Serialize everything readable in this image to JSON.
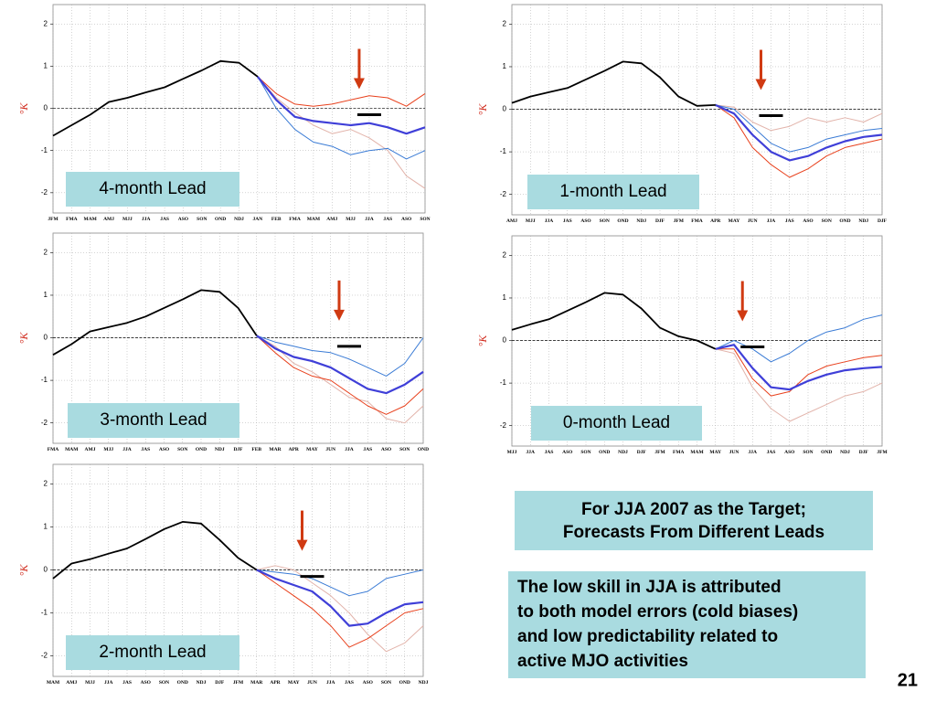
{
  "chart_data": [
    {
      "type": "line",
      "annotation": "4-month Lead",
      "ylabel": "°K",
      "categories": [
        "JFM",
        "FMA",
        "MAM",
        "AMJ",
        "MJJ",
        "JJA",
        "JAS",
        "ASO",
        "SON",
        "OND",
        "NDJ",
        "JAN",
        "FEB",
        "FMA",
        "MAM",
        "AMJ",
        "MJJ",
        "JJA",
        "JAS",
        "ASO",
        "SON"
      ],
      "ylim": [
        -2.48,
        2.46
      ],
      "yticks": [
        -2,
        -1,
        0,
        1,
        2
      ],
      "grid": true,
      "series": [
        {
          "color": "#e2b3aa",
          "width": 1,
          "values": [
            null,
            null,
            null,
            null,
            null,
            null,
            null,
            null,
            null,
            null,
            null,
            0.75,
            0.25,
            -0.1,
            -0.4,
            -0.6,
            -0.5,
            -0.7,
            -1.0,
            -1.6,
            -1.9
          ]
        },
        {
          "color": "#3a7bd5",
          "width": 1,
          "values": [
            null,
            null,
            null,
            null,
            null,
            null,
            null,
            null,
            null,
            null,
            null,
            0.75,
            0.0,
            -0.5,
            -0.8,
            -0.9,
            -1.1,
            -1.0,
            -0.95,
            -1.2,
            -1.0
          ]
        },
        {
          "color": "#e8401c",
          "width": 1,
          "values": [
            null,
            null,
            null,
            null,
            null,
            null,
            null,
            null,
            null,
            null,
            null,
            0.75,
            0.35,
            0.1,
            0.05,
            0.1,
            0.2,
            0.3,
            0.25,
            0.05,
            0.35
          ]
        },
        {
          "color": "#3f3fd8",
          "width": 2.2,
          "values": [
            null,
            null,
            null,
            null,
            null,
            null,
            null,
            null,
            null,
            null,
            null,
            0.75,
            0.2,
            -0.2,
            -0.3,
            -0.35,
            -0.4,
            -0.35,
            -0.45,
            -0.6,
            -0.45
          ]
        },
        {
          "color": "#000000",
          "width": 1.8,
          "values": [
            -0.65,
            -0.4,
            -0.15,
            0.15,
            0.25,
            0.38,
            0.5,
            0.7,
            0.9,
            1.12,
            1.08,
            0.75,
            null,
            null,
            null,
            null,
            null,
            null,
            null,
            null,
            null
          ]
        },
        {
          "color": "#000000",
          "width": 3,
          "values": [
            null,
            null,
            null,
            null,
            null,
            null,
            null,
            null,
            null,
            null,
            null,
            null,
            null,
            null,
            null,
            null,
            null,
            -0.15,
            null,
            null,
            null
          ]
        }
      ]
    },
    {
      "type": "line",
      "annotation": "1-month Lead",
      "ylabel": "°K",
      "categories": [
        "AMJ",
        "MJJ",
        "JJA",
        "JAS",
        "ASO",
        "SON",
        "OND",
        "NDJ",
        "DJF",
        "JFM",
        "FMA",
        "APR",
        "MAY",
        "JUN",
        "JJA",
        "JAS",
        "ASO",
        "SON",
        "OND",
        "NDJ",
        "DJF"
      ],
      "ylim": [
        -2.48,
        2.46
      ],
      "yticks": [
        -2,
        -1,
        0,
        1,
        2
      ],
      "grid": true,
      "series": [
        {
          "color": "#e2b3aa",
          "width": 1,
          "values": [
            null,
            null,
            null,
            null,
            null,
            null,
            null,
            null,
            null,
            null,
            null,
            0.1,
            0.05,
            -0.3,
            -0.5,
            -0.4,
            -0.2,
            -0.3,
            -0.2,
            -0.3,
            -0.1
          ]
        },
        {
          "color": "#3a7bd5",
          "width": 1,
          "values": [
            null,
            null,
            null,
            null,
            null,
            null,
            null,
            null,
            null,
            null,
            null,
            0.1,
            0.0,
            -0.4,
            -0.8,
            -1.0,
            -0.9,
            -0.7,
            -0.6,
            -0.5,
            -0.45
          ]
        },
        {
          "color": "#e8401c",
          "width": 1,
          "values": [
            null,
            null,
            null,
            null,
            null,
            null,
            null,
            null,
            null,
            null,
            null,
            0.1,
            -0.2,
            -0.9,
            -1.3,
            -1.6,
            -1.4,
            -1.1,
            -0.9,
            -0.8,
            -0.7
          ]
        },
        {
          "color": "#3f3fd8",
          "width": 2.2,
          "values": [
            null,
            null,
            null,
            null,
            null,
            null,
            null,
            null,
            null,
            null,
            null,
            0.1,
            -0.1,
            -0.6,
            -1.0,
            -1.2,
            -1.1,
            -0.9,
            -0.75,
            -0.65,
            -0.6
          ]
        },
        {
          "color": "#000000",
          "width": 1.8,
          "values": [
            0.15,
            0.3,
            0.4,
            0.5,
            0.7,
            0.9,
            1.12,
            1.08,
            0.75,
            0.3,
            0.08,
            0.1,
            null,
            null,
            null,
            null,
            null,
            null,
            null,
            null,
            null
          ]
        },
        {
          "color": "#000000",
          "width": 3,
          "values": [
            null,
            null,
            null,
            null,
            null,
            null,
            null,
            null,
            null,
            null,
            null,
            null,
            null,
            null,
            -0.15,
            null,
            null,
            null,
            null,
            null,
            null
          ]
        }
      ]
    },
    {
      "type": "line",
      "annotation": "3-month Lead",
      "ylabel": "°K",
      "categories": [
        "FMA",
        "MAM",
        "AMJ",
        "MJJ",
        "JJA",
        "JAS",
        "ASO",
        "SON",
        "OND",
        "NDJ",
        "DJF",
        "FEB",
        "MAR",
        "APR",
        "MAY",
        "JUN",
        "JJA",
        "JAS",
        "ASO",
        "SON",
        "OND"
      ],
      "ylim": [
        -2.48,
        2.46
      ],
      "yticks": [
        -2,
        -1,
        0,
        1,
        2
      ],
      "grid": true,
      "series": [
        {
          "color": "#e2b3aa",
          "width": 1,
          "values": [
            null,
            null,
            null,
            null,
            null,
            null,
            null,
            null,
            null,
            null,
            null,
            0.05,
            -0.2,
            -0.6,
            -0.8,
            -1.1,
            -1.4,
            -1.5,
            -1.9,
            -2.0,
            -1.6
          ]
        },
        {
          "color": "#3a7bd5",
          "width": 1,
          "values": [
            null,
            null,
            null,
            null,
            null,
            null,
            null,
            null,
            null,
            null,
            null,
            0.05,
            -0.1,
            -0.2,
            -0.3,
            -0.35,
            -0.5,
            -0.7,
            -0.9,
            -0.6,
            0.0
          ]
        },
        {
          "color": "#e8401c",
          "width": 1,
          "values": [
            null,
            null,
            null,
            null,
            null,
            null,
            null,
            null,
            null,
            null,
            null,
            0.05,
            -0.35,
            -0.7,
            -0.9,
            -1.0,
            -1.3,
            -1.6,
            -1.8,
            -1.6,
            -1.2
          ]
        },
        {
          "color": "#3f3fd8",
          "width": 2.2,
          "values": [
            null,
            null,
            null,
            null,
            null,
            null,
            null,
            null,
            null,
            null,
            null,
            0.05,
            -0.25,
            -0.45,
            -0.55,
            -0.7,
            -0.95,
            -1.2,
            -1.3,
            -1.1,
            -0.8
          ]
        },
        {
          "color": "#000000",
          "width": 1.8,
          "values": [
            -0.4,
            -0.15,
            0.15,
            0.25,
            0.35,
            0.5,
            0.7,
            0.9,
            1.12,
            1.08,
            0.7,
            0.05,
            null,
            null,
            null,
            null,
            null,
            null,
            null,
            null,
            null
          ]
        },
        {
          "color": "#000000",
          "width": 3,
          "values": [
            null,
            null,
            null,
            null,
            null,
            null,
            null,
            null,
            null,
            null,
            null,
            null,
            null,
            null,
            null,
            null,
            -0.2,
            null,
            null,
            null,
            null
          ]
        }
      ]
    },
    {
      "type": "line",
      "annotation": "0-month Lead",
      "ylabel": "°K",
      "categories": [
        "MJJ",
        "JJA",
        "JAS",
        "ASO",
        "SON",
        "OND",
        "NDJ",
        "DJF",
        "JFM",
        "FMA",
        "MAM",
        "MAY",
        "JUN",
        "JJA",
        "JAS",
        "ASO",
        "SON",
        "OND",
        "NDJ",
        "DJF",
        "JFM"
      ],
      "ylim": [
        -2.48,
        2.46
      ],
      "yticks": [
        -2,
        -1,
        0,
        1,
        2
      ],
      "grid": true,
      "series": [
        {
          "color": "#e2b3aa",
          "width": 1,
          "values": [
            null,
            null,
            null,
            null,
            null,
            null,
            null,
            null,
            null,
            null,
            null,
            -0.2,
            -0.3,
            -1.1,
            -1.6,
            -1.9,
            -1.7,
            -1.5,
            -1.3,
            -1.2,
            -1.0
          ]
        },
        {
          "color": "#3a7bd5",
          "width": 1,
          "values": [
            null,
            null,
            null,
            null,
            null,
            null,
            null,
            null,
            null,
            null,
            null,
            -0.2,
            0.0,
            -0.2,
            -0.5,
            -0.3,
            0.0,
            0.2,
            0.3,
            0.5,
            0.6
          ]
        },
        {
          "color": "#e8401c",
          "width": 1,
          "values": [
            null,
            null,
            null,
            null,
            null,
            null,
            null,
            null,
            null,
            null,
            null,
            -0.2,
            -0.2,
            -0.9,
            -1.3,
            -1.2,
            -0.8,
            -0.6,
            -0.5,
            -0.4,
            -0.35
          ]
        },
        {
          "color": "#3f3fd8",
          "width": 2.2,
          "values": [
            null,
            null,
            null,
            null,
            null,
            null,
            null,
            null,
            null,
            null,
            null,
            -0.2,
            -0.1,
            -0.65,
            -1.1,
            -1.15,
            -0.95,
            -0.8,
            -0.7,
            -0.65,
            -0.62
          ]
        },
        {
          "color": "#000000",
          "width": 1.8,
          "values": [
            0.25,
            0.38,
            0.5,
            0.7,
            0.9,
            1.12,
            1.08,
            0.75,
            0.3,
            0.1,
            0.0,
            -0.2,
            null,
            null,
            null,
            null,
            null,
            null,
            null,
            null,
            null
          ]
        },
        {
          "color": "#000000",
          "width": 3,
          "values": [
            null,
            null,
            null,
            null,
            null,
            null,
            null,
            null,
            null,
            null,
            null,
            null,
            null,
            -0.15,
            null,
            null,
            null,
            null,
            null,
            null,
            null
          ]
        }
      ]
    },
    {
      "type": "line",
      "annotation": "2-month Lead",
      "ylabel": "°K",
      "categories": [
        "MAM",
        "AMJ",
        "MJJ",
        "JJA",
        "JAS",
        "ASO",
        "SON",
        "OND",
        "NDJ",
        "DJF",
        "JFM",
        "MAR",
        "APR",
        "MAY",
        "JUN",
        "JJA",
        "JAS",
        "ASO",
        "SON",
        "OND",
        "NDJ"
      ],
      "ylim": [
        -2.48,
        2.46
      ],
      "yticks": [
        -2,
        -1,
        0,
        1,
        2
      ],
      "grid": true,
      "series": [
        {
          "color": "#e2b3aa",
          "width": 1,
          "values": [
            null,
            null,
            null,
            null,
            null,
            null,
            null,
            null,
            null,
            null,
            null,
            0.0,
            0.1,
            0.0,
            -0.3,
            -0.6,
            -1.0,
            -1.5,
            -1.9,
            -1.7,
            -1.3
          ]
        },
        {
          "color": "#3a7bd5",
          "width": 1,
          "values": [
            null,
            null,
            null,
            null,
            null,
            null,
            null,
            null,
            null,
            null,
            null,
            0.0,
            -0.05,
            -0.1,
            -0.2,
            -0.4,
            -0.6,
            -0.5,
            -0.2,
            -0.1,
            0.0
          ]
        },
        {
          "color": "#e8401c",
          "width": 1,
          "values": [
            null,
            null,
            null,
            null,
            null,
            null,
            null,
            null,
            null,
            null,
            null,
            0.0,
            -0.3,
            -0.6,
            -0.9,
            -1.3,
            -1.8,
            -1.6,
            -1.3,
            -1.0,
            -0.9
          ]
        },
        {
          "color": "#3f3fd8",
          "width": 2.2,
          "values": [
            null,
            null,
            null,
            null,
            null,
            null,
            null,
            null,
            null,
            null,
            null,
            0.0,
            -0.2,
            -0.35,
            -0.5,
            -0.85,
            -1.3,
            -1.25,
            -1.0,
            -0.8,
            -0.75
          ]
        },
        {
          "color": "#000000",
          "width": 1.8,
          "values": [
            -0.2,
            0.15,
            0.25,
            0.38,
            0.5,
            0.72,
            0.95,
            1.12,
            1.08,
            0.7,
            0.28,
            0.0,
            null,
            null,
            null,
            null,
            null,
            null,
            null,
            null,
            null
          ]
        },
        {
          "color": "#000000",
          "width": 3,
          "values": [
            null,
            null,
            null,
            null,
            null,
            null,
            null,
            null,
            null,
            null,
            null,
            null,
            null,
            null,
            -0.15,
            null,
            null,
            null,
            null,
            null,
            null
          ]
        }
      ]
    }
  ],
  "slide": {
    "heading": [
      "For JJA 2007 as the Target;",
      "Forecasts From Different Leads"
    ],
    "note": [
      "The low skill in JJA is attributed",
      "to both model errors (cold biases)",
      "and low predictability related to",
      "active MJO activities"
    ],
    "page_number": "21"
  }
}
